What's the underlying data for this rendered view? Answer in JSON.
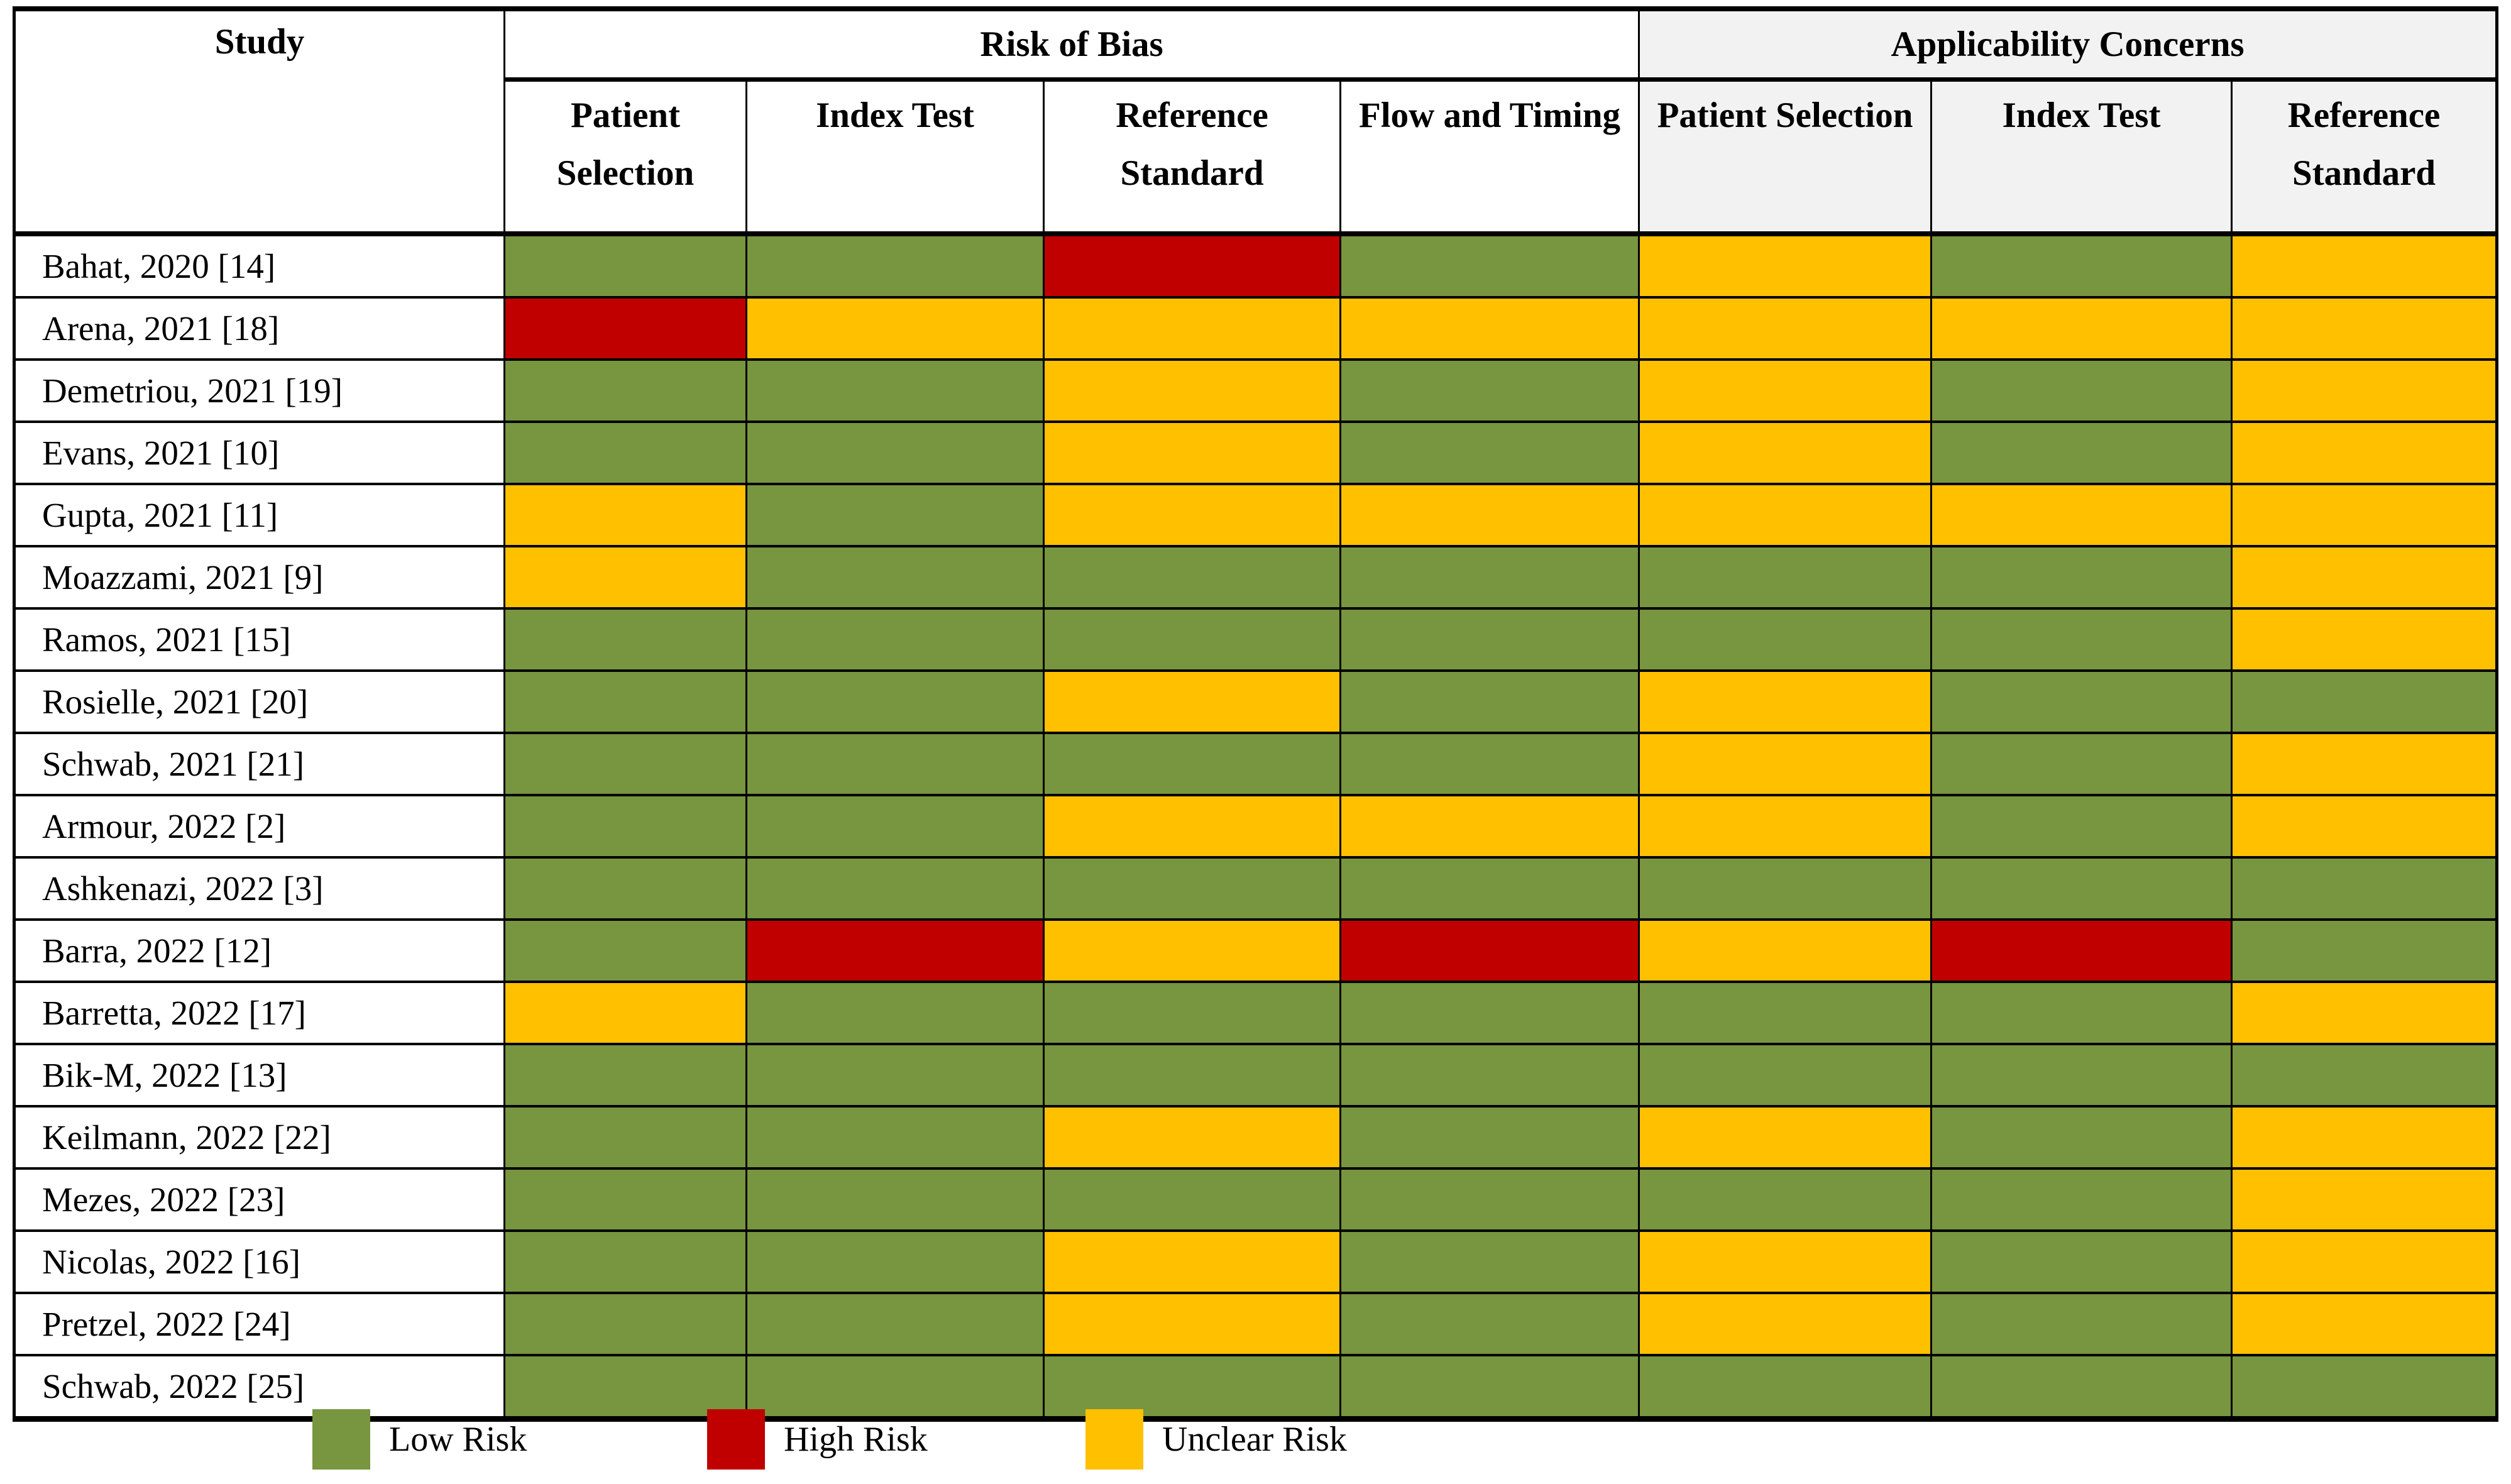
{
  "table": {
    "study_header": "Study",
    "groups": [
      {
        "label": "Risk of Bias",
        "subheaders": [
          "Patient Selection",
          "Index Test",
          "Reference Standard",
          "Flow and Timing"
        ]
      },
      {
        "label": "Applicability Concerns",
        "subheaders": [
          "Patient Selection",
          "Index Test",
          "Reference Standard"
        ]
      }
    ]
  },
  "chart_data": {
    "type": "table",
    "row_header": "Study",
    "column_groups": [
      {
        "group": "Risk of Bias",
        "columns": [
          "Patient Selection",
          "Index Test",
          "Reference Standard",
          "Flow and Timing"
        ]
      },
      {
        "group": "Applicability Concerns",
        "columns": [
          "Patient Selection",
          "Index Test",
          "Reference Standard"
        ]
      }
    ],
    "rating_scale": {
      "low": "Low Risk",
      "high": "High Risk",
      "unclear": "Unclear Risk"
    },
    "rows": [
      {
        "study": "Bahat, 2020 [14]",
        "ratings": [
          "low",
          "low",
          "high",
          "low",
          "unclear",
          "low",
          "unclear"
        ]
      },
      {
        "study": "Arena, 2021 [18]",
        "ratings": [
          "high",
          "unclear",
          "unclear",
          "unclear",
          "unclear",
          "unclear",
          "unclear"
        ]
      },
      {
        "study": "Demetriou, 2021 [19]",
        "ratings": [
          "low",
          "low",
          "unclear",
          "low",
          "unclear",
          "low",
          "unclear"
        ]
      },
      {
        "study": "Evans, 2021 [10]",
        "ratings": [
          "low",
          "low",
          "unclear",
          "low",
          "unclear",
          "low",
          "unclear"
        ]
      },
      {
        "study": "Gupta, 2021 [11]",
        "ratings": [
          "unclear",
          "low",
          "unclear",
          "unclear",
          "unclear",
          "unclear",
          "unclear"
        ]
      },
      {
        "study": "Moazzami, 2021 [9]",
        "ratings": [
          "unclear",
          "low",
          "low",
          "low",
          "low",
          "low",
          "unclear"
        ]
      },
      {
        "study": "Ramos, 2021 [15]",
        "ratings": [
          "low",
          "low",
          "low",
          "low",
          "low",
          "low",
          "unclear"
        ]
      },
      {
        "study": "Rosielle, 2021 [20]",
        "ratings": [
          "low",
          "low",
          "unclear",
          "low",
          "unclear",
          "low",
          "low"
        ]
      },
      {
        "study": "Schwab, 2021 [21]",
        "ratings": [
          "low",
          "low",
          "low",
          "low",
          "unclear",
          "low",
          "unclear"
        ]
      },
      {
        "study": "Armour, 2022 [2]",
        "ratings": [
          "low",
          "low",
          "unclear",
          "unclear",
          "unclear",
          "low",
          "unclear"
        ]
      },
      {
        "study": "Ashkenazi, 2022 [3]",
        "ratings": [
          "low",
          "low",
          "low",
          "low",
          "low",
          "low",
          "low"
        ]
      },
      {
        "study": "Barra, 2022 [12]",
        "ratings": [
          "low",
          "high",
          "unclear",
          "high",
          "unclear",
          "high",
          "low"
        ]
      },
      {
        "study": "Barretta, 2022 [17]",
        "ratings": [
          "unclear",
          "low",
          "low",
          "low",
          "low",
          "low",
          "unclear"
        ]
      },
      {
        "study": "Bik-M, 2022 [13]",
        "ratings": [
          "low",
          "low",
          "low",
          "low",
          "low",
          "low",
          "low"
        ]
      },
      {
        "study": "Keilmann, 2022 [22]",
        "ratings": [
          "low",
          "low",
          "unclear",
          "low",
          "unclear",
          "low",
          "unclear"
        ]
      },
      {
        "study": "Mezes, 2022 [23]",
        "ratings": [
          "low",
          "low",
          "low",
          "low",
          "low",
          "low",
          "unclear"
        ]
      },
      {
        "study": "Nicolas, 2022 [16]",
        "ratings": [
          "low",
          "low",
          "unclear",
          "low",
          "unclear",
          "low",
          "unclear"
        ]
      },
      {
        "study": "Pretzel, 2022 [24]",
        "ratings": [
          "low",
          "low",
          "unclear",
          "low",
          "unclear",
          "low",
          "unclear"
        ]
      },
      {
        "study": "Schwab, 2022 [25]",
        "ratings": [
          "low",
          "low",
          "low",
          "low",
          "low",
          "low",
          "low"
        ]
      }
    ]
  },
  "legend": {
    "items": [
      {
        "key": "low",
        "label": "Low Risk"
      },
      {
        "key": "high",
        "label": "High Risk"
      },
      {
        "key": "unclear",
        "label": "Unclear Risk"
      }
    ]
  },
  "colors": {
    "low": "#78953F",
    "high": "#C00000",
    "unclear": "#FFC000",
    "header_bg": "#F2F2F2",
    "border": "#000000"
  }
}
